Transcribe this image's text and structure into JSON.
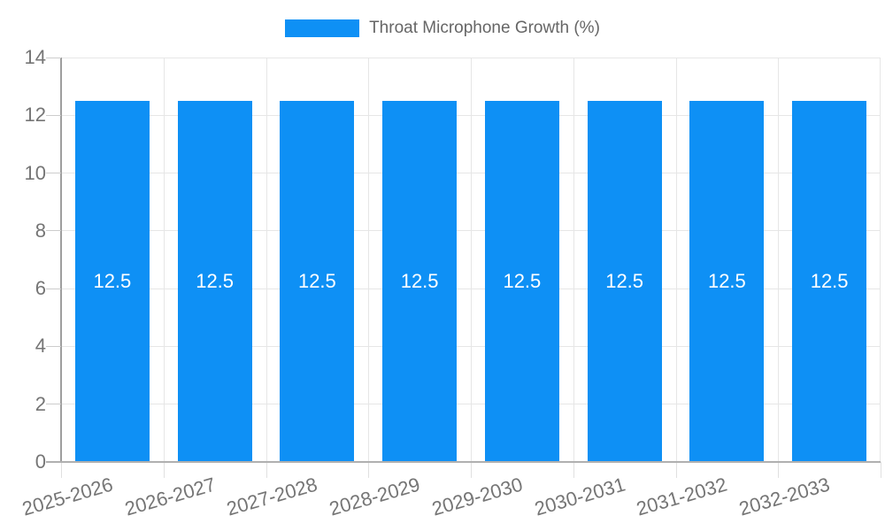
{
  "legend": {
    "label": "Throat Microphone Growth (%)"
  },
  "chart_data": {
    "type": "bar",
    "title": "Throat Microphone Growth (%)",
    "categories": [
      "2025-2026",
      "2026-2027",
      "2027-2028",
      "2028-2029",
      "2029-2030",
      "2030-2031",
      "2031-2032",
      "2032-2033"
    ],
    "values": [
      12.5,
      12.5,
      12.5,
      12.5,
      12.5,
      12.5,
      12.5,
      12.5
    ],
    "value_labels": [
      "12.5",
      "12.5",
      "12.5",
      "12.5",
      "12.5",
      "12.5",
      "12.5",
      "12.5"
    ],
    "xlabel": "",
    "ylabel": "",
    "ylim": [
      0,
      14
    ],
    "yticks": [
      0,
      2,
      4,
      6,
      8,
      10,
      12,
      14
    ],
    "grid": true,
    "legend_position": "top",
    "colors": {
      "bar": "#0e90f5",
      "value_label": "#ffffff",
      "axis_text": "#757575",
      "legend_text": "#666666",
      "gridline": "#e6e6e6",
      "y_axis_line": "#9e9e9e",
      "x_axis_line": "#b0b0b0",
      "background": "#ffffff"
    }
  }
}
